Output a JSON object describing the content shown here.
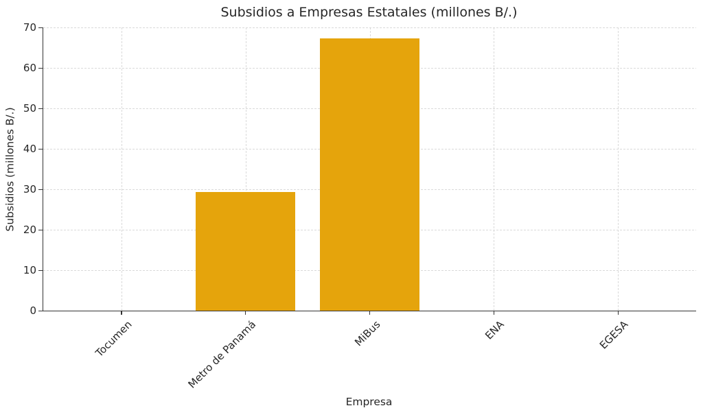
{
  "chart_data": {
    "type": "bar",
    "title": "Subsidios a Empresas Estatales (millones B/.)",
    "xlabel": "Empresa",
    "ylabel": "Subsidios (millones B/.)",
    "categories": [
      "Tocumen",
      "Metro de Panamá",
      "MiBus",
      "ENA",
      "EGESA"
    ],
    "values": [
      0,
      29.3,
      67.3,
      0,
      0
    ],
    "ylim": [
      0,
      70
    ],
    "yticks": [
      0,
      10,
      20,
      30,
      40,
      50,
      60,
      70
    ],
    "grid": true,
    "legend_position": "none",
    "x_tick_rotation_deg": 45,
    "bar_color": "#E5A40C",
    "axis_color": "#333333",
    "grid_color": "#D9D9D9",
    "text_color": "#262626",
    "background_color": "#FFFFFF"
  }
}
